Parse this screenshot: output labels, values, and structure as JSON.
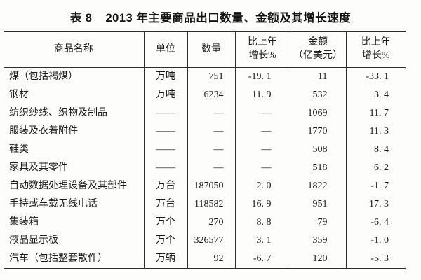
{
  "title": {
    "label": "表 8",
    "text": "2013 年主要商品出口数量、金额及其增长速度"
  },
  "table": {
    "columns": [
      "商品名称",
      "单位",
      "数量",
      "比上年\n增长%",
      "金额\n（亿美元）",
      "比上年\n增长%"
    ],
    "cell_keys": [
      "name",
      "unit",
      "quantity",
      "quantity_growth",
      "amount",
      "amount_growth"
    ],
    "rows": [
      {
        "name": "煤（包括褐煤）",
        "unit": "万吨",
        "quantity": "751",
        "quantity_growth": "-19. 1",
        "amount": "11",
        "amount_growth": "-33. 1"
      },
      {
        "name": "钢材",
        "unit": "万吨",
        "quantity": "6234",
        "quantity_growth": "11. 9",
        "amount": "532",
        "amount_growth": "3. 4"
      },
      {
        "name": "纺织纱线、织物及制品",
        "unit": "——",
        "quantity": "—",
        "quantity_growth": "—",
        "amount": "1069",
        "amount_growth": "11. 7"
      },
      {
        "name": "服装及衣着附件",
        "unit": "——",
        "quantity": "—",
        "quantity_growth": "—",
        "amount": "1770",
        "amount_growth": "11. 3"
      },
      {
        "name": "鞋类",
        "unit": "——",
        "quantity": "—",
        "quantity_growth": "—",
        "amount": "508",
        "amount_growth": "8. 4"
      },
      {
        "name": "家具及其零件",
        "unit": "——",
        "quantity": "—",
        "quantity_growth": "—",
        "amount": "518",
        "amount_growth": "6. 2"
      },
      {
        "name": "自动数据处理设备及其部件",
        "unit": "万台",
        "quantity": "187050",
        "quantity_growth": "2. 0",
        "amount": "1822",
        "amount_growth": "-1. 7"
      },
      {
        "name": "手持或车载无线电话",
        "unit": "万台",
        "quantity": "118582",
        "quantity_growth": "16. 9",
        "amount": "951",
        "amount_growth": "17. 3"
      },
      {
        "name": "集装箱",
        "unit": "万个",
        "quantity": "270",
        "quantity_growth": "8. 8",
        "amount": "79",
        "amount_growth": "-6. 4"
      },
      {
        "name": "液晶显示板",
        "unit": "万个",
        "quantity": "326577",
        "quantity_growth": "3. 1",
        "amount": "359",
        "amount_growth": "-1. 0"
      },
      {
        "name": "汽车（包括整套散件）",
        "unit": "万辆",
        "quantity": "92",
        "quantity_growth": "-6. 7",
        "amount": "120",
        "amount_growth": "-5. 3"
      }
    ]
  }
}
